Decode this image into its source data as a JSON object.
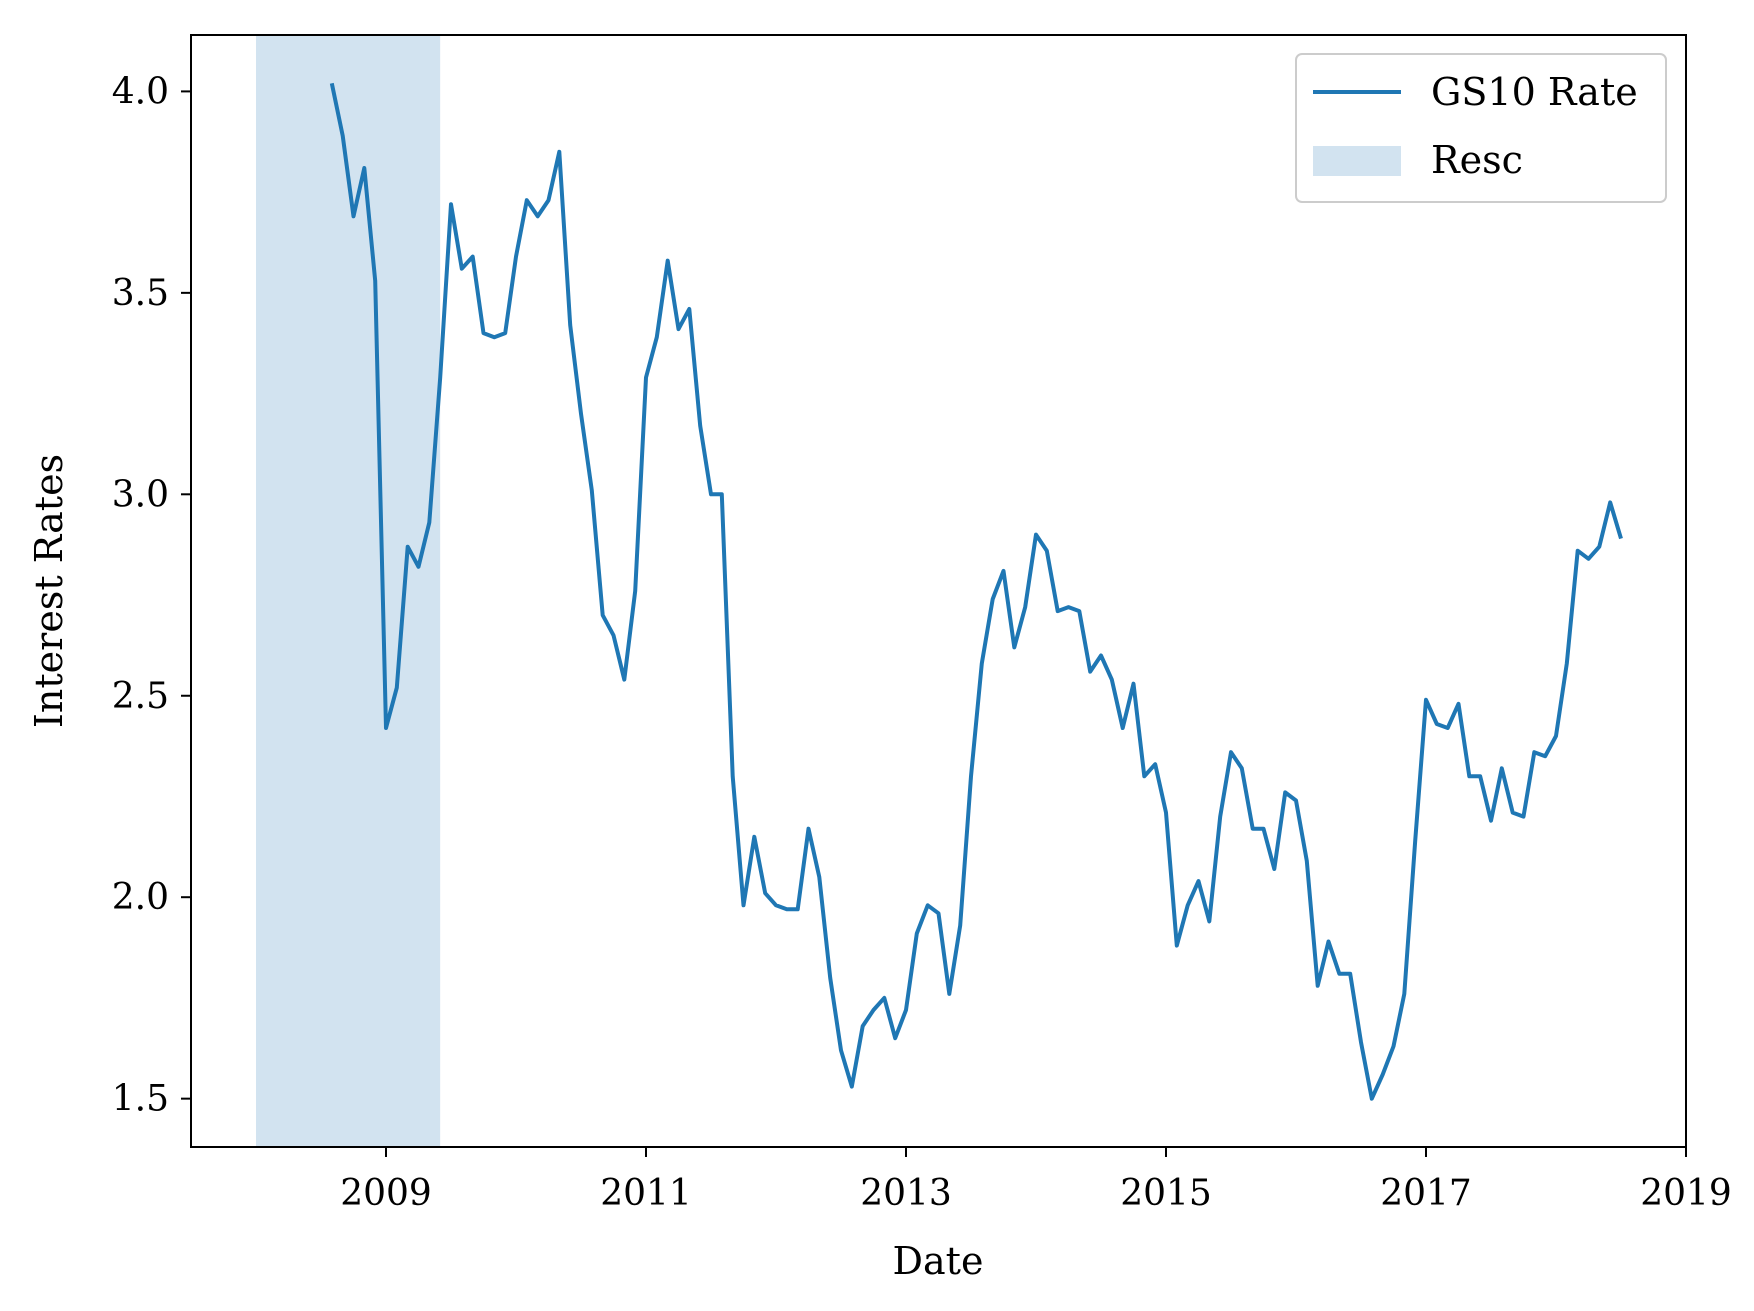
{
  "chart_data": {
    "type": "line",
    "title": "",
    "xlabel": "Date",
    "ylabel": "Interest Rates",
    "xlim": [
      "2007-07",
      "2019-01"
    ],
    "ylim": [
      1.38,
      4.14
    ],
    "x_ticks": [
      {
        "date": "2009-01",
        "label": "2009"
      },
      {
        "date": "2011-01",
        "label": "2011"
      },
      {
        "date": "2013-01",
        "label": "2013"
      },
      {
        "date": "2015-01",
        "label": "2015"
      },
      {
        "date": "2017-01",
        "label": "2017"
      },
      {
        "date": "2019-01",
        "label": "2019"
      }
    ],
    "y_ticks": [
      {
        "value": 1.5,
        "label": "1.5"
      },
      {
        "value": 2.0,
        "label": "2.0"
      },
      {
        "value": 2.5,
        "label": "2.5"
      },
      {
        "value": 3.0,
        "label": "3.0"
      },
      {
        "value": 3.5,
        "label": "3.5"
      },
      {
        "value": 4.0,
        "label": "4.0"
      }
    ],
    "grid": false,
    "legend_position": "top-right",
    "series": [
      {
        "name": "GS10 Rate",
        "color": "#1f77b4",
        "x": [
          "2008-08",
          "2008-09",
          "2008-10",
          "2008-11",
          "2008-12",
          "2009-01",
          "2009-02",
          "2009-03",
          "2009-04",
          "2009-05",
          "2009-06",
          "2009-07",
          "2009-08",
          "2009-09",
          "2009-10",
          "2009-11",
          "2009-12",
          "2010-01",
          "2010-02",
          "2010-03",
          "2010-04",
          "2010-05",
          "2010-06",
          "2010-07",
          "2010-08",
          "2010-09",
          "2010-10",
          "2010-11",
          "2010-12",
          "2011-01",
          "2011-02",
          "2011-03",
          "2011-04",
          "2011-05",
          "2011-06",
          "2011-07",
          "2011-08",
          "2011-09",
          "2011-10",
          "2011-11",
          "2011-12",
          "2012-01",
          "2012-02",
          "2012-03",
          "2012-04",
          "2012-05",
          "2012-06",
          "2012-07",
          "2012-08",
          "2012-09",
          "2012-10",
          "2012-11",
          "2012-12",
          "2013-01",
          "2013-02",
          "2013-03",
          "2013-04",
          "2013-05",
          "2013-06",
          "2013-07",
          "2013-08",
          "2013-09",
          "2013-10",
          "2013-11",
          "2013-12",
          "2014-01",
          "2014-02",
          "2014-03",
          "2014-04",
          "2014-05",
          "2014-06",
          "2014-07",
          "2014-08",
          "2014-09",
          "2014-10",
          "2014-11",
          "2014-12",
          "2015-01",
          "2015-02",
          "2015-03",
          "2015-04",
          "2015-05",
          "2015-06",
          "2015-07",
          "2015-08",
          "2015-09",
          "2015-10",
          "2015-11",
          "2015-12",
          "2016-01",
          "2016-02",
          "2016-03",
          "2016-04",
          "2016-05",
          "2016-06",
          "2016-07",
          "2016-08",
          "2016-09",
          "2016-10",
          "2016-11",
          "2016-12",
          "2017-01",
          "2017-02",
          "2017-03",
          "2017-04",
          "2017-05",
          "2017-06",
          "2017-07",
          "2017-08",
          "2017-09",
          "2017-10",
          "2017-11",
          "2017-12",
          "2018-01",
          "2018-02",
          "2018-03",
          "2018-04",
          "2018-05",
          "2018-06",
          "2018-07"
        ],
        "values": [
          4.02,
          3.89,
          3.69,
          3.81,
          3.53,
          2.42,
          2.52,
          2.87,
          2.82,
          2.93,
          3.29,
          3.72,
          3.56,
          3.59,
          3.4,
          3.39,
          3.4,
          3.59,
          3.73,
          3.69,
          3.73,
          3.85,
          3.42,
          3.2,
          3.01,
          2.7,
          2.65,
          2.54,
          2.76,
          3.29,
          3.39,
          3.58,
          3.41,
          3.46,
          3.17,
          3.0,
          3.0,
          2.3,
          1.98,
          2.15,
          2.01,
          1.98,
          1.97,
          1.97,
          2.17,
          2.05,
          1.8,
          1.62,
          1.53,
          1.68,
          1.72,
          1.75,
          1.65,
          1.72,
          1.91,
          1.98,
          1.96,
          1.76,
          1.93,
          2.3,
          2.58,
          2.74,
          2.81,
          2.62,
          2.72,
          2.9,
          2.86,
          2.71,
          2.72,
          2.71,
          2.56,
          2.6,
          2.54,
          2.42,
          2.53,
          2.3,
          2.33,
          2.21,
          1.88,
          1.98,
          2.04,
          1.94,
          2.2,
          2.36,
          2.32,
          2.17,
          2.17,
          2.07,
          2.26,
          2.24,
          2.09,
          1.78,
          1.89,
          1.81,
          1.81,
          1.64,
          1.5,
          1.56,
          1.63,
          1.76,
          2.14,
          2.49,
          2.43,
          2.42,
          2.48,
          2.3,
          2.3,
          2.19,
          2.32,
          2.21,
          2.2,
          2.36,
          2.35,
          2.4,
          2.58,
          2.86,
          2.84,
          2.87,
          2.98,
          2.89
        ]
      }
    ],
    "shaded_regions": [
      {
        "name": "Resc",
        "start": "2008-01",
        "end": "2009-06",
        "color": "#d2e3f0"
      }
    ]
  }
}
